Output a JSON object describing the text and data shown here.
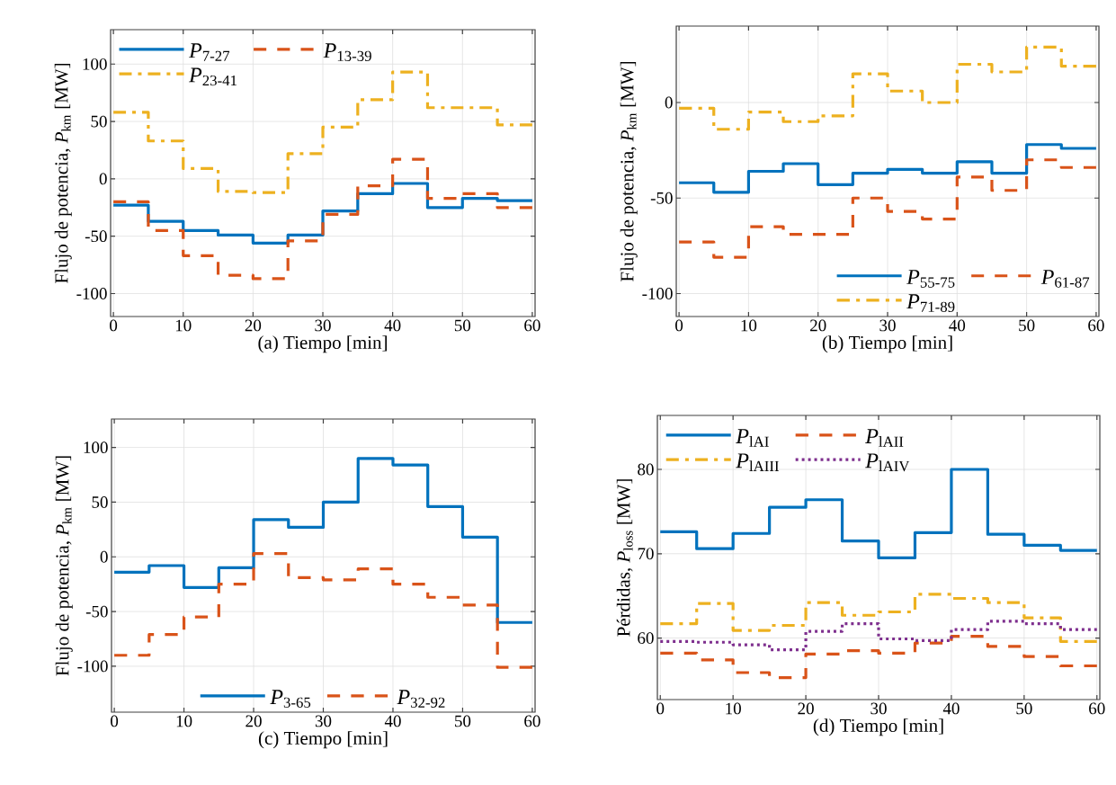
{
  "chart_data": [
    {
      "type": "step",
      "xlabel": "(a)  Tiempo  [min]",
      "ylabel": "Flujo de potencia,  *P*$_{km}$  [MW]",
      "x": [
        0,
        5,
        10,
        15,
        20,
        25,
        30,
        35,
        40,
        45,
        50,
        55,
        60
      ],
      "xlim": [
        -0.4,
        60.4
      ],
      "ylim": [
        -120,
        130
      ],
      "xticks": [
        0,
        10,
        20,
        30,
        40,
        50,
        60
      ],
      "yticks": [
        -100,
        -50,
        0,
        50,
        100
      ],
      "grid": true,
      "legend": "top left",
      "series": [
        {
          "name": "*P*$_{7-27}$",
          "color": "#0072bd",
          "line_style": "solid",
          "values": [
            -23,
            -37,
            -45,
            -49,
            -56,
            -49,
            -28,
            -13,
            -4,
            -25,
            -17,
            -19,
            -19
          ]
        },
        {
          "name": "*P*$_{13-39}$",
          "color": "#d95319",
          "line_style": "dashed",
          "values": [
            -20,
            -45,
            -67,
            -84,
            -87,
            -54,
            -31,
            -6,
            17,
            -17,
            -13,
            -25,
            -25
          ]
        },
        {
          "name": "*P*$_{23-41}$",
          "color": "#edb120",
          "line_style": "dashdot",
          "values": [
            58,
            33,
            9,
            -11,
            -12,
            22,
            45,
            69,
            93,
            62,
            62,
            47,
            47
          ]
        }
      ]
    },
    {
      "type": "step",
      "xlabel": "(b)  Tiempo  [min]",
      "ylabel": "Flujo de potencia,  *P*$_{km}$  [MW]",
      "x": [
        0,
        5,
        10,
        15,
        20,
        25,
        30,
        35,
        40,
        45,
        50,
        55,
        60
      ],
      "xlim": [
        -0.4,
        60.4
      ],
      "ylim": [
        -112,
        40
      ],
      "xticks": [
        0,
        10,
        20,
        30,
        40,
        50,
        60
      ],
      "yticks": [
        -100,
        -50,
        0
      ],
      "grid": true,
      "legend": "bottom right",
      "series": [
        {
          "name": "*P*$_{55-75}$",
          "color": "#0072bd",
          "line_style": "solid",
          "values": [
            -42,
            -47,
            -36,
            -32,
            -43,
            -37,
            -35,
            -37,
            -31,
            -37,
            -22,
            -24,
            -24
          ]
        },
        {
          "name": "*P*$_{61-87}$",
          "color": "#d95319",
          "line_style": "dashed",
          "values": [
            -73,
            -81,
            -65,
            -69,
            -69,
            -50,
            -57,
            -61,
            -39,
            -46,
            -30,
            -34,
            -34
          ]
        },
        {
          "name": "*P*$_{71-89}$",
          "color": "#edb120",
          "line_style": "dashdot",
          "values": [
            -3,
            -14,
            -5,
            -10,
            -7,
            15,
            6,
            0,
            20,
            16,
            29,
            19,
            19
          ]
        }
      ]
    },
    {
      "type": "step",
      "xlabel": "(c)  Tiempo  [min]",
      "ylabel": "Flujo de potencia,  *P*$_{km}$  [MW]",
      "x": [
        0,
        5,
        10,
        15,
        20,
        25,
        30,
        35,
        40,
        45,
        50,
        55,
        60
      ],
      "xlim": [
        -0.4,
        60.4
      ],
      "ylim": [
        -142,
        126
      ],
      "xticks": [
        0,
        10,
        20,
        30,
        40,
        50,
        60
      ],
      "yticks": [
        -100,
        -50,
        0,
        50,
        100
      ],
      "grid": true,
      "legend": "bottom",
      "series": [
        {
          "name": "*P*$_{3-65}$",
          "color": "#0072bd",
          "line_style": "solid",
          "values": [
            -14,
            -8,
            -28,
            -10,
            34,
            27,
            50,
            90,
            84,
            46,
            18,
            -60,
            -60
          ]
        },
        {
          "name": "*P*$_{32-92}$",
          "color": "#d95319",
          "line_style": "dashed",
          "values": [
            -90,
            -71,
            -55,
            -25,
            3,
            -19,
            -21,
            -11,
            -25,
            -37,
            -44,
            -101,
            -101
          ]
        }
      ]
    },
    {
      "type": "step",
      "xlabel": "(d)  Tiempo  [min]",
      "ylabel": "Pérdidas,  *P*$_{loss}$  [MW]",
      "x": [
        0,
        5,
        10,
        15,
        20,
        25,
        30,
        35,
        40,
        45,
        50,
        55,
        60
      ],
      "xlim": [
        -0.4,
        60.4
      ],
      "ylim": [
        52.7,
        86.4
      ],
      "xticks": [
        0,
        10,
        20,
        30,
        40,
        50,
        60
      ],
      "yticks": [
        60,
        70,
        80
      ],
      "grid": true,
      "legend": "top left",
      "series": [
        {
          "name": "*P*$_{lAI}$",
          "color": "#0072bd",
          "line_style": "solid",
          "values": [
            72.6,
            70.6,
            72.4,
            75.5,
            76.4,
            71.5,
            69.5,
            72.5,
            80,
            72.3,
            71.0,
            70.4,
            70.4
          ]
        },
        {
          "name": "*P*$_{lAII}$",
          "color": "#d95319",
          "line_style": "dashed",
          "values": [
            58.2,
            57.4,
            55.9,
            55.3,
            58.1,
            58.5,
            58.2,
            59.4,
            60.2,
            59.0,
            57.8,
            56.7,
            56.7
          ]
        },
        {
          "name": "*P*$_{lAIII}$",
          "color": "#edb120",
          "line_style": "dashdot",
          "values": [
            61.7,
            64.1,
            60.9,
            61.5,
            64.2,
            62.7,
            63.1,
            65.2,
            64.7,
            64.2,
            62.4,
            59.6,
            59.6
          ]
        },
        {
          "name": "*P*$_{lAIV}$",
          "color": "#7e2f8e",
          "line_style": "dotted",
          "values": [
            59.6,
            59.5,
            59.2,
            58.6,
            60.8,
            61.7,
            59.9,
            59.7,
            61.0,
            62.0,
            61.7,
            61.0,
            61.0
          ]
        }
      ]
    }
  ]
}
